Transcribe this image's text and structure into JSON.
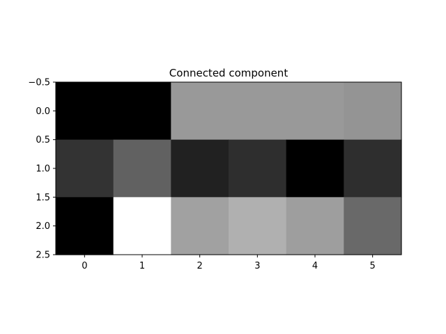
{
  "chart_data": {
    "type": "heatmap",
    "title": "Connected component",
    "xlabel": "",
    "ylabel": "",
    "colormap": "gray",
    "x_ticks": [
      "0",
      "1",
      "2",
      "3",
      "4",
      "5"
    ],
    "y_ticks": [
      "-0.5",
      "0.0",
      "0.5",
      "1.0",
      "1.5",
      "2.0",
      "2.5"
    ],
    "xlim": [
      -0.5,
      5.5
    ],
    "ylim": [
      2.5,
      -0.5
    ],
    "grid": false,
    "rows": 3,
    "cols": 6,
    "values": [
      [
        0.0,
        0.0,
        0.6,
        0.6,
        0.6,
        0.58
      ],
      [
        0.2,
        0.38,
        0.13,
        0.18,
        0.0,
        0.18
      ],
      [
        0.0,
        1.0,
        0.63,
        0.69,
        0.62,
        0.41
      ]
    ],
    "value_range": [
      0,
      1
    ]
  }
}
